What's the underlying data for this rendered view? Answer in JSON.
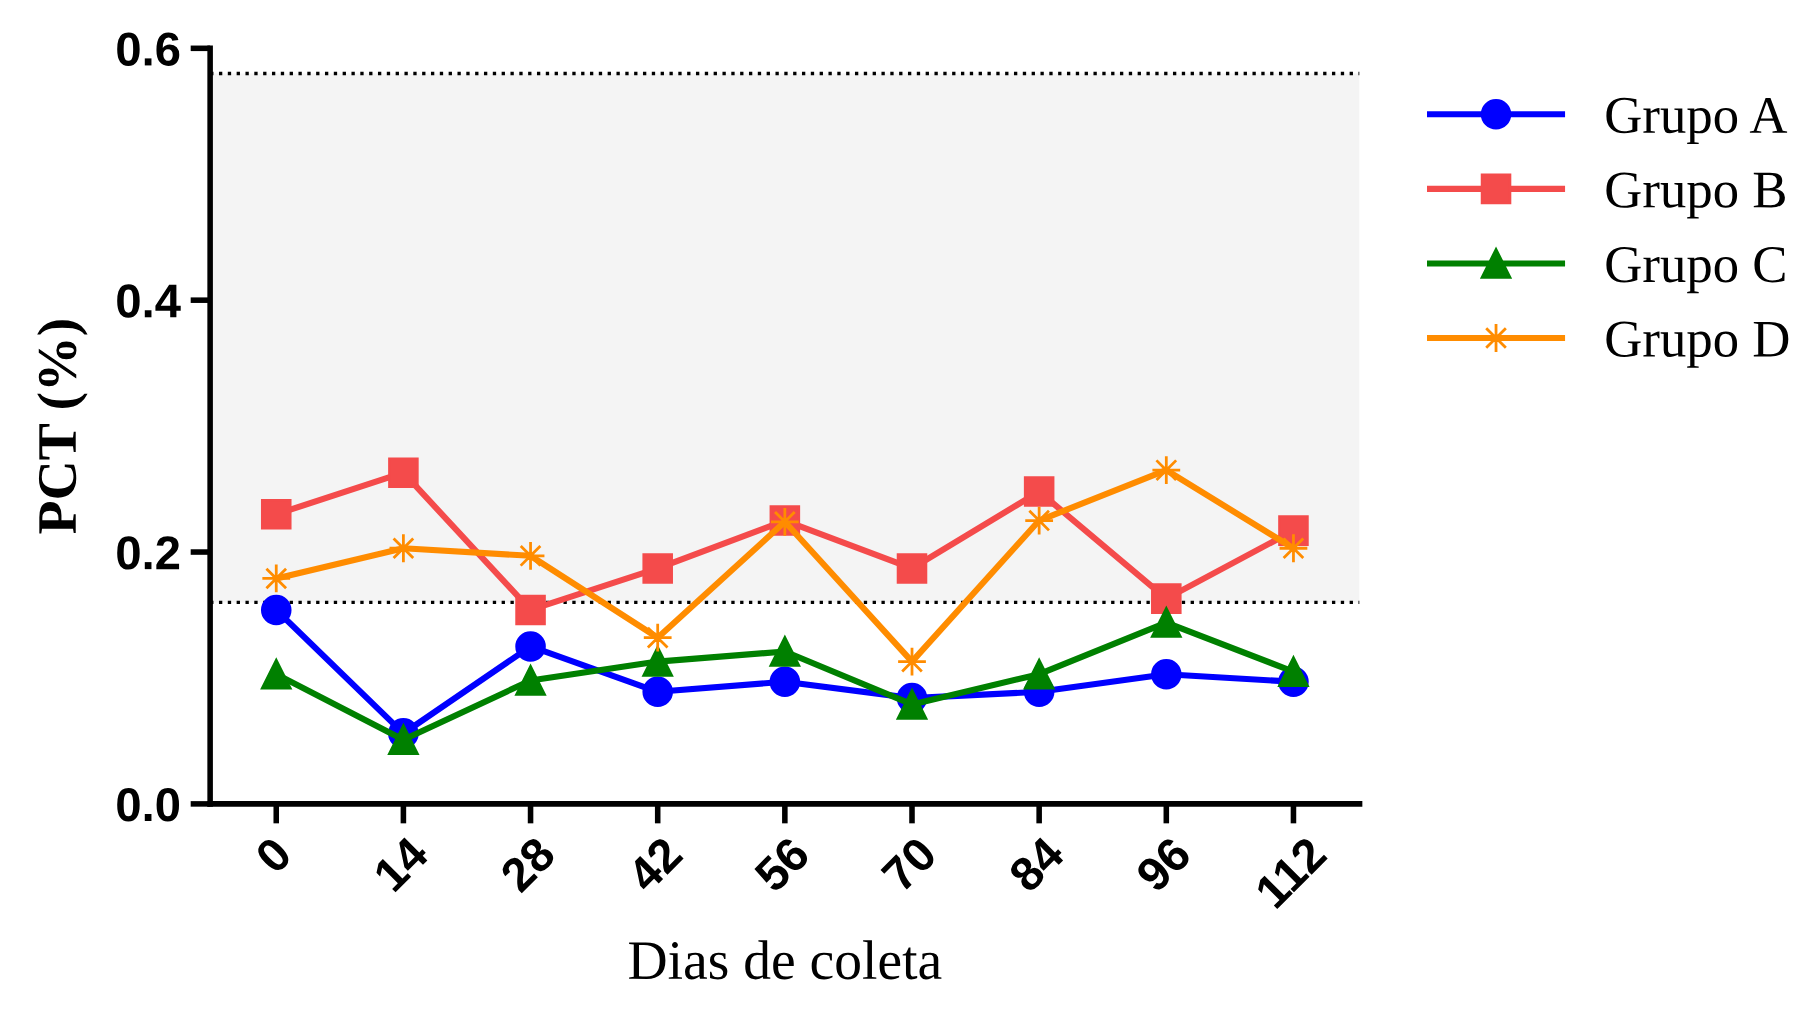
{
  "chart_data": {
    "type": "line",
    "xlabel": "Dias de coleta",
    "ylabel": "PCT (%)",
    "categories": [
      "0",
      "14",
      "28",
      "42",
      "56",
      "70",
      "84",
      "96",
      "112"
    ],
    "ylim": [
      0,
      0.6
    ],
    "yticks": [
      {
        "value": 0,
        "label": "0.0"
      },
      {
        "value": 0.2,
        "label": "0.2"
      },
      {
        "value": 0.4,
        "label": "0.4"
      },
      {
        "value": 0.6,
        "label": "0.6"
      }
    ],
    "grid": false,
    "legend": "right",
    "line_style": "solid",
    "bands": [
      {
        "axis": "y",
        "from": 0.16,
        "to": 0.58,
        "color": "#f4f4f4"
      }
    ],
    "ref_lines": [
      {
        "axis": "y",
        "value": 0.16,
        "color": "#000000",
        "line_style": "dotted"
      },
      {
        "axis": "y",
        "value": 0.58,
        "color": "#000000",
        "line_style": "dotted"
      }
    ],
    "series": [
      {
        "name": "Grupo A",
        "color": "#0000ff",
        "marker": "circle",
        "values": [
          0.154,
          0.056,
          0.125,
          0.089,
          0.097,
          0.084,
          0.089,
          0.103,
          0.097
        ]
      },
      {
        "name": "Grupo B",
        "color": "#f44b4b",
        "marker": "square",
        "values": [
          0.23,
          0.263,
          0.154,
          0.187,
          0.225,
          0.187,
          0.248,
          0.163,
          0.217
        ]
      },
      {
        "name": "Grupo C",
        "color": "#008000",
        "marker": "triangle",
        "values": [
          0.103,
          0.051,
          0.098,
          0.113,
          0.121,
          0.079,
          0.103,
          0.144,
          0.105
        ]
      },
      {
        "name": "Grupo D",
        "color": "#ff8c00",
        "marker": "star",
        "values": [
          0.179,
          0.203,
          0.197,
          0.132,
          0.224,
          0.113,
          0.225,
          0.265,
          0.203
        ]
      }
    ]
  }
}
